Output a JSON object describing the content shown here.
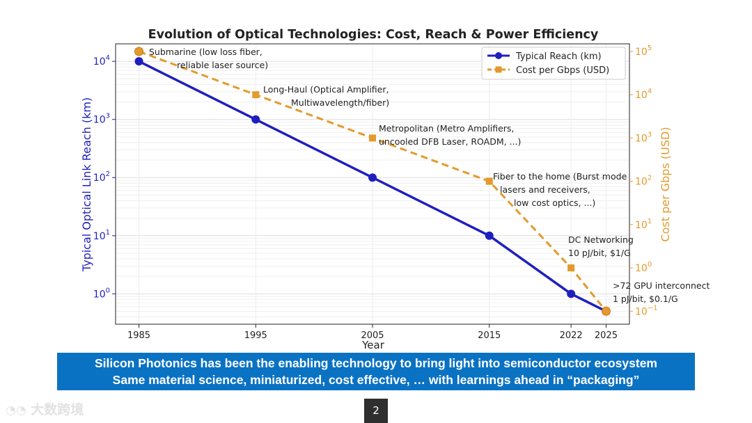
{
  "chart_data": {
    "type": "line",
    "title": "Evolution of Optical Technologies: Cost, Reach & Power Efficiency",
    "xlabel": "Year",
    "ylabel_left": "Typical Optical Link Reach (km)",
    "ylabel_right": "Cost per Gbps (USD)",
    "categories": [
      "1985",
      "1995",
      "2005",
      "2015",
      "2022",
      "2025"
    ],
    "x": [
      1985,
      1995,
      2005,
      2015,
      2022,
      2025
    ],
    "series": [
      {
        "name": "Typical Reach (km)",
        "axis": "left",
        "color": "#1f1fbf",
        "marker": "circle",
        "values": [
          10000,
          1000,
          100,
          10,
          1,
          0.5
        ]
      },
      {
        "name": "Cost per Gbps (USD)",
        "axis": "right",
        "color": "#e39a2c",
        "marker": "square",
        "linestyle": "dashed",
        "values": [
          100000,
          10000,
          1000,
          100,
          1,
          0.1
        ]
      }
    ],
    "ylim_left": [
      0.3,
      20000
    ],
    "ylim_right": [
      0.05,
      150000
    ],
    "scale": "log",
    "left_ticks": [
      {
        "value": 1,
        "base": "10",
        "exp": "0"
      },
      {
        "value": 10,
        "base": "10",
        "exp": "1"
      },
      {
        "value": 100,
        "base": "10",
        "exp": "2"
      },
      {
        "value": 1000,
        "base": "10",
        "exp": "3"
      },
      {
        "value": 10000,
        "base": "10",
        "exp": "4"
      }
    ],
    "right_ticks": [
      {
        "value": 0.1,
        "base": "10",
        "exp": "−1"
      },
      {
        "value": 1,
        "base": "10",
        "exp": "0"
      },
      {
        "value": 10,
        "base": "10",
        "exp": "1"
      },
      {
        "value": 100,
        "base": "10",
        "exp": "2"
      },
      {
        "value": 1000,
        "base": "10",
        "exp": "3"
      },
      {
        "value": 10000,
        "base": "10",
        "exp": "4"
      },
      {
        "value": 100000,
        "base": "10",
        "exp": "5"
      }
    ],
    "grid": true,
    "legend_position": "top-right",
    "annotations": [
      {
        "lines": [
          "Submarine (low loss fiber,",
          "reliable laser source)"
        ]
      },
      {
        "lines": [
          "Long-Haul (Optical Amplifier,",
          "Multiwavelength/fiber)"
        ]
      },
      {
        "lines": [
          "Metropolitan (Metro Amplifiers,",
          "uncooled DFB Laser, ROADM, ...)"
        ]
      },
      {
        "lines": [
          "Fiber to the home (Burst mode",
          "lasers and receivers,",
          "low cost optics, ...)"
        ]
      },
      {
        "lines": [
          "DC Networking",
          "10 pJ/bit, $1/G"
        ]
      },
      {
        "lines": [
          ">72 GPU interconnect",
          "1 pJ/bit, $0.1/G"
        ]
      }
    ],
    "colors": {
      "left_axis": "#1f1fbf",
      "right_axis": "#e39a2c",
      "grid": "#e6e6e6"
    }
  },
  "banner": {
    "line1": "Silicon Photonics has been the enabling technology to bring light into semiconductor ecosystem",
    "line2": "Same material science, miniaturized, cost effective, … with learnings ahead in “packaging”",
    "color": "#0a72c3"
  },
  "page_number": "2",
  "watermark": {
    "icon": "logo-icon",
    "text": "大数跨境"
  }
}
